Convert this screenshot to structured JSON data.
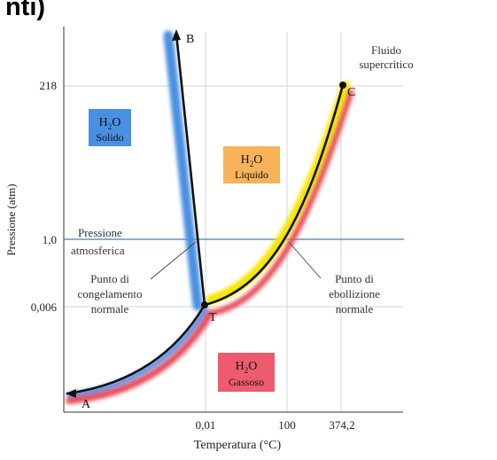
{
  "header_fragment": "nti)",
  "chart_data": {
    "type": "line",
    "title": "",
    "xlabel": "Temperatura (°C)",
    "ylabel": "Pressione (atm)",
    "x_ticks": [
      "0,01",
      "100",
      "374,2"
    ],
    "y_ticks": [
      "218",
      "1,0",
      "0,006"
    ],
    "log_scale": false,
    "grid": true,
    "series": [
      {
        "name": "",
        "curve": "T-B",
        "color": "#4a90e2",
        "points": [
          {
            "x": "0,01",
            "y": "0,006"
          },
          {
            "x": "< 0,01",
            "y": "> 218"
          }
        ]
      },
      {
        "name": "",
        "curve": "T-C",
        "color": "#f5e600",
        "points": [
          {
            "x": "0,01",
            "y": "0,006"
          },
          {
            "x": "100",
            "y": "1,0"
          },
          {
            "x": "374,2",
            "y": "218"
          }
        ]
      },
      {
        "name": "",
        "curve": "A-T",
        "color": "#e8505b",
        "points": [
          {
            "x": "< 0",
            "y": "< 0,006"
          },
          {
            "x": "0,01",
            "y": "0,006"
          }
        ]
      }
    ],
    "points": [
      {
        "label": "A"
      },
      {
        "label": "B"
      },
      {
        "label": "C"
      },
      {
        "label": "T"
      }
    ],
    "regions": [
      {
        "formula_H": "H",
        "formula_sub": "2",
        "formula_O": "O",
        "phase": "Solido",
        "color": "#4a90e2"
      },
      {
        "formula_H": "H",
        "formula_sub": "2",
        "formula_O": "O",
        "phase": "Liquido",
        "color": "#f7b25a"
      },
      {
        "formula_H": "H",
        "formula_sub": "2",
        "formula_O": "O",
        "phase": "Gassoso",
        "color": "#ef5b6e"
      }
    ],
    "annotations": {
      "supercritical_1": "Fluido",
      "supercritical_2": "supercritico",
      "atm_1": "Pressione",
      "atm_2": "atmosferica",
      "freeze_1": "Punto di",
      "freeze_2": "congelamento",
      "freeze_3": "normale",
      "boil_1": "Punto di",
      "boil_2": "ebollizione",
      "boil_3": "normale"
    },
    "atmospheric_line": {
      "y": "1,0",
      "color": "#3f7fc1"
    }
  }
}
